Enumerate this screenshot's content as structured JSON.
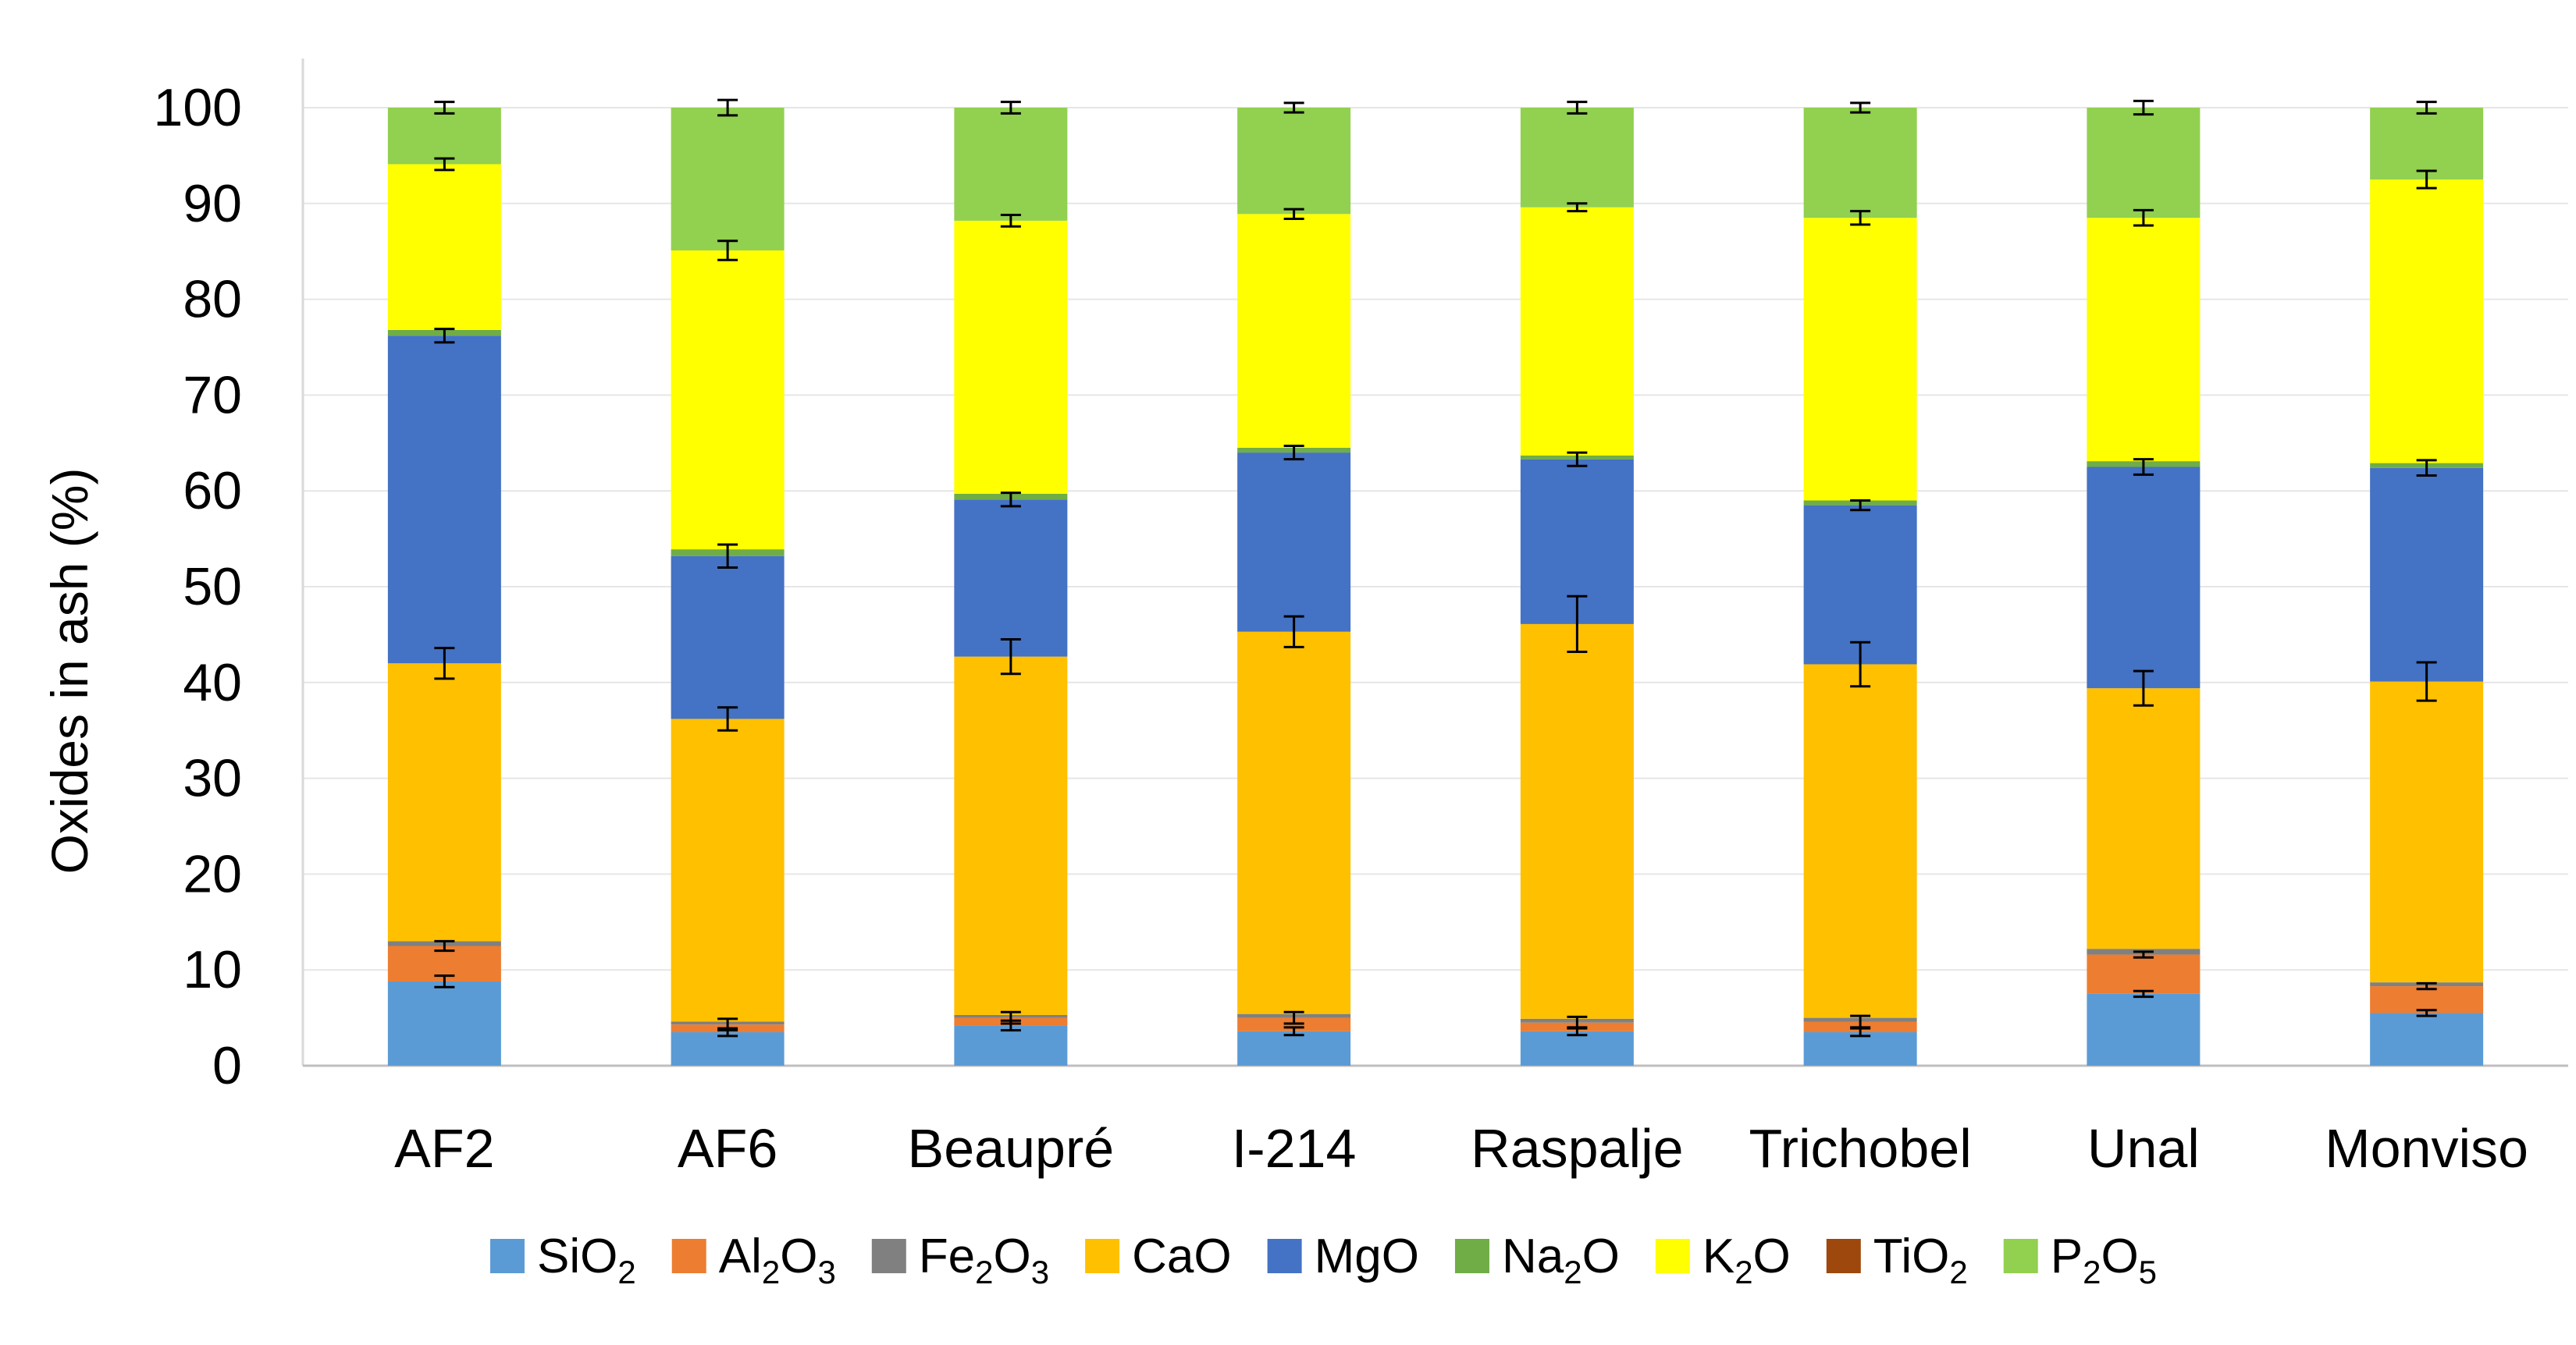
{
  "chart_data": {
    "type": "bar",
    "stacked": true,
    "title": "",
    "xlabel": "",
    "ylabel": "Oxides in ash (%)",
    "ylim": [
      0,
      100
    ],
    "yticks": [
      "0",
      "10",
      "20",
      "30",
      "40",
      "50",
      "60",
      "70",
      "80",
      "90",
      "100"
    ],
    "grid": true,
    "legend_position": "bottom",
    "categories": [
      "AF2",
      "AF6",
      "Beaupré",
      "I-214",
      "Raspalje",
      "Trichobel",
      "Unal",
      "Monviso"
    ],
    "series": [
      {
        "name": "SiO2",
        "label_base": "SiO",
        "label_sub": "2",
        "color": "#5B9BD5",
        "values": [
          8.8,
          3.5,
          4.2,
          3.6,
          3.6,
          3.5,
          7.5,
          5.5
        ],
        "errors": [
          0.6,
          0.4,
          0.5,
          0.4,
          0.4,
          0.4,
          0.3,
          0.3
        ]
      },
      {
        "name": "Al2O3",
        "label_base": "Al",
        "label_sub": "2",
        "label_base2": "O",
        "label_sub2": "3",
        "color": "#ED7D31",
        "values": [
          3.7,
          0.8,
          0.8,
          1.4,
          0.9,
          1.1,
          4.1,
          2.8
        ],
        "errors": [
          0.5,
          0.6,
          0.6,
          0.6,
          0.6,
          0.6,
          0.3,
          0.3
        ]
      },
      {
        "name": "Fe2O3",
        "label_base": "Fe",
        "label_sub": "2",
        "label_base2": "O",
        "label_sub2": "3",
        "color": "#808080",
        "values": [
          0.5,
          0.3,
          0.3,
          0.4,
          0.4,
          0.4,
          0.6,
          0.4
        ],
        "errors": [
          0,
          0,
          0,
          0,
          0,
          0,
          0,
          0
        ]
      },
      {
        "name": "CaO",
        "label_base": "CaO",
        "color": "#FFC000",
        "values": [
          29.0,
          31.6,
          37.4,
          39.9,
          41.2,
          36.9,
          27.2,
          31.4
        ],
        "errors": [
          1.6,
          1.2,
          1.8,
          1.6,
          2.9,
          2.3,
          1.8,
          2.0
        ]
      },
      {
        "name": "MgO",
        "label_base": "MgO",
        "color": "#4472C4",
        "values": [
          34.2,
          17.0,
          16.4,
          18.7,
          17.2,
          16.6,
          23.1,
          22.3
        ],
        "errors": [
          0.7,
          1.2,
          0.7,
          0.7,
          0.7,
          0.5,
          0.8,
          0.8
        ]
      },
      {
        "name": "Na2O",
        "label_base": "Na",
        "label_sub": "2",
        "label_base2": "O",
        "color": "#70AD47",
        "values": [
          0.6,
          0.7,
          0.6,
          0.5,
          0.4,
          0.5,
          0.6,
          0.5
        ],
        "errors": [
          0,
          0,
          0,
          0,
          0,
          0,
          0,
          0
        ]
      },
      {
        "name": "K2O",
        "label_base": "K",
        "label_sub": "2",
        "label_base2": "O",
        "color": "#FFFF00",
        "values": [
          17.3,
          31.2,
          28.5,
          24.4,
          25.9,
          29.5,
          25.4,
          29.6
        ],
        "errors": [
          0.6,
          1.0,
          0.6,
          0.5,
          0.4,
          0.7,
          0.8,
          0.9
        ]
      },
      {
        "name": "TiO2",
        "label_base": "TiO",
        "label_sub": "2",
        "color": "#9E480E",
        "values": [
          0,
          0,
          0,
          0,
          0,
          0,
          0,
          0
        ],
        "errors": [
          0,
          0,
          0,
          0,
          0,
          0,
          0,
          0
        ]
      },
      {
        "name": "P2O5",
        "label_base": "P",
        "label_sub": "2",
        "label_base2": "O",
        "label_sub2": "5",
        "color": "#92D050",
        "values": [
          5.9,
          14.9,
          11.8,
          11.1,
          10.4,
          11.5,
          11.5,
          7.5
        ],
        "errors": [
          0.6,
          0.8,
          0.6,
          0.5,
          0.6,
          0.5,
          0.7,
          0.6
        ]
      }
    ]
  }
}
